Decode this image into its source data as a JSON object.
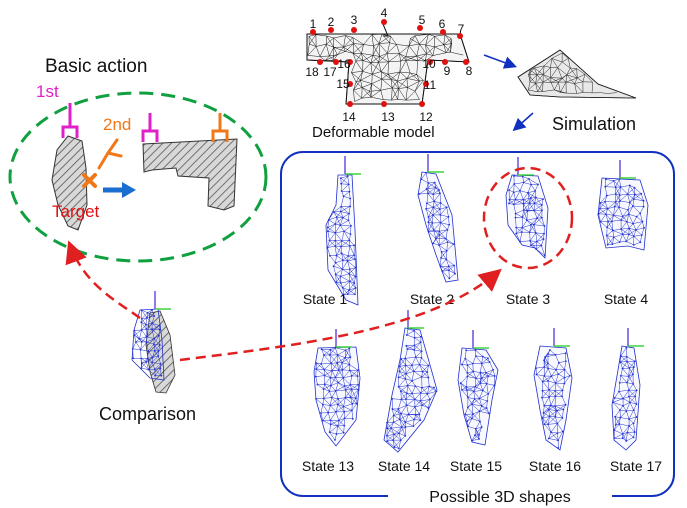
{
  "basic_action": {
    "title": "Basic action",
    "first_label": "1st",
    "second_label": "2nd",
    "target_label": "Target"
  },
  "model": {
    "caption": "Deformable model",
    "point_numbers": [
      "1",
      "2",
      "3",
      "4",
      "5",
      "6",
      "7",
      "8",
      "9",
      "10",
      "11",
      "12",
      "13",
      "14",
      "15",
      "16",
      "17",
      "18"
    ]
  },
  "simulation": {
    "label": "Simulation"
  },
  "comparison": {
    "label": "Comparison"
  },
  "shapes_panel": {
    "title": "Possible 3D shapes",
    "top_row": [
      "State 1",
      "State 2",
      "State 3",
      "State 4"
    ],
    "bottom_row": [
      "State 13",
      "State 14",
      "State 15",
      "State 16",
      "State 17"
    ]
  },
  "colors": {
    "first_gripper": "#e020c8",
    "second_gripper": "#f07818",
    "target_mark": "#f07818",
    "target_text": "#e01010",
    "dashed_ellipse": "#10a040",
    "red_dash": "#e02020",
    "blue_frame": "#1030c0",
    "arrow_blue": "#1a6ed0",
    "mesh": "#2030d0"
  },
  "icons": [
    "gripper-icon",
    "hatched-cloth-icon",
    "mesh-shape-icon",
    "arrow-icon"
  ]
}
